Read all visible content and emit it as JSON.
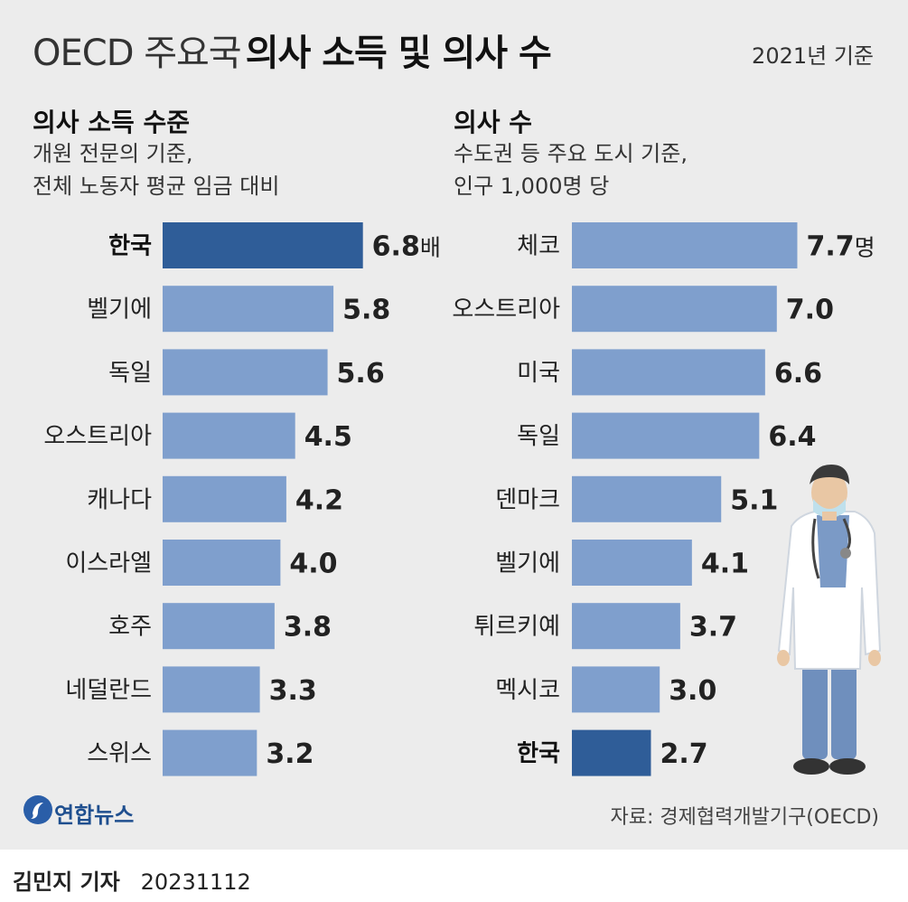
{
  "header": {
    "title_light": "OECD 주요국",
    "title_bold": "의사 소득 및 의사 수",
    "basis": "2021년 기준"
  },
  "left_panel": {
    "title": "의사 소득 수준",
    "desc": "개원 전문의 기준,\n전체 노동자 평균 임금 대비"
  },
  "right_panel": {
    "title": "의사 수",
    "desc": "수도권 등 주요 도시 기준,\n인구 1,000명 당"
  },
  "footer": {
    "source": "자료: 경제협력개발기구(OECD)",
    "logo_text": "연합뉴스",
    "reporter": "김민지 기자",
    "date": "20231112"
  },
  "colors": {
    "background": "#ececec",
    "bar": "#7f9fcd",
    "highlight_bar": "#2f5d98"
  },
  "icons": [
    "yonhap-logo-icon",
    "doctor-illustration"
  ],
  "chart_data": [
    {
      "type": "bar",
      "orientation": "horizontal",
      "title": "의사 소득 수준",
      "categories": [
        "한국",
        "벨기에",
        "독일",
        "오스트리아",
        "캐나다",
        "이스라엘",
        "호주",
        "네덜란드",
        "스위스"
      ],
      "values": [
        6.8,
        5.8,
        5.6,
        4.5,
        4.2,
        4.0,
        3.8,
        3.3,
        3.2
      ],
      "value_labels": [
        "6.8",
        "5.8",
        "5.6",
        "4.5",
        "4.2",
        "4.0",
        "3.8",
        "3.3",
        "3.2"
      ],
      "unit": "배",
      "highlight": "한국",
      "grid": false
    },
    {
      "type": "bar",
      "orientation": "horizontal",
      "title": "의사 수",
      "categories": [
        "체코",
        "오스트리아",
        "미국",
        "독일",
        "덴마크",
        "벨기에",
        "튀르키예",
        "멕시코",
        "한국"
      ],
      "values": [
        7.7,
        7.0,
        6.6,
        6.4,
        5.1,
        4.1,
        3.7,
        3.0,
        2.7
      ],
      "value_labels": [
        "7.7",
        "7.0",
        "6.6",
        "6.4",
        "5.1",
        "4.1",
        "3.7",
        "3.0",
        "2.7"
      ],
      "unit": "명",
      "highlight": "한국",
      "grid": false
    }
  ]
}
